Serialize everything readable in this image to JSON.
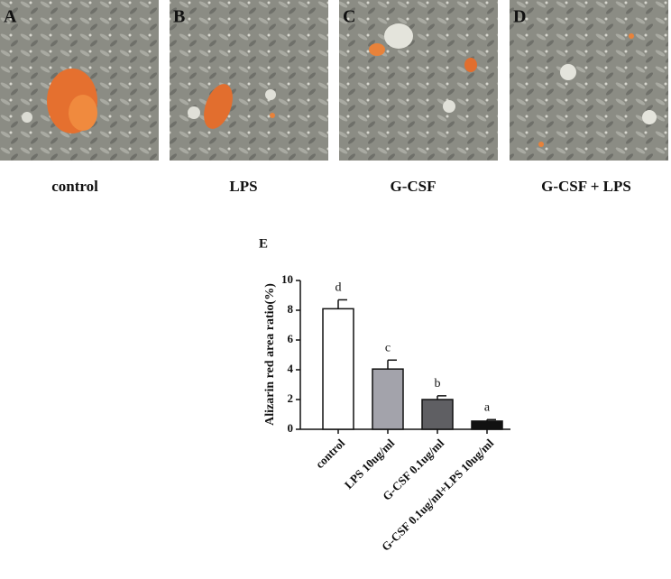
{
  "panels": [
    {
      "letter": "A",
      "caption": "control"
    },
    {
      "letter": "B",
      "caption": "LPS"
    },
    {
      "letter": "C",
      "caption": "G-CSF"
    },
    {
      "letter": "D",
      "caption": "G-CSF + LPS"
    }
  ],
  "chart_data": {
    "type": "bar",
    "title": "E",
    "y_label": "Alizarin red area ratio(%)",
    "categories": [
      "control",
      "LPS 10ug/ml",
      "G-CSF 0.1ug/ml",
      "G-CSF 0.1ug/ml+LPS 10ug/ml"
    ],
    "values": [
      8.1,
      4.05,
      2.0,
      0.55
    ],
    "errors": [
      0.6,
      0.6,
      0.25,
      0.1
    ],
    "annotations": [
      "d",
      "c",
      "b",
      "a"
    ],
    "colors": [
      "#ffffff",
      "#a3a3ab",
      "#5f5f63",
      "#111111"
    ],
    "ylim": [
      0,
      10
    ],
    "yticks": [
      0,
      2,
      4,
      6,
      8,
      10
    ]
  }
}
